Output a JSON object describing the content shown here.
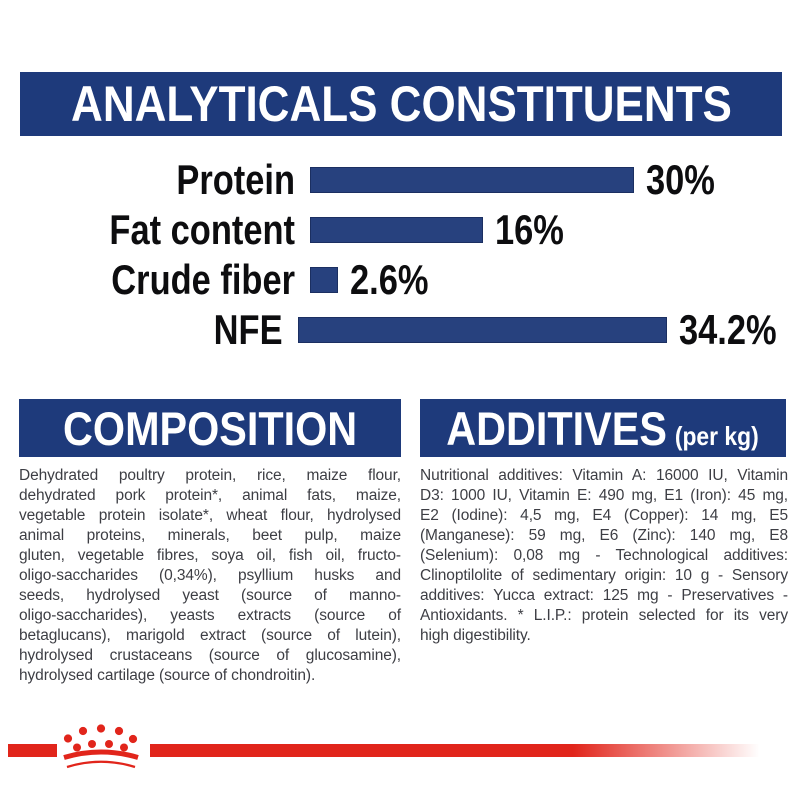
{
  "analyticals": {
    "title": "ANALYTICALS CONSTITUENTS"
  },
  "chart_data": {
    "type": "bar",
    "orientation": "horizontal",
    "categories": [
      "Protein",
      "Fat content",
      "Crude fiber",
      "NFE"
    ],
    "values": [
      30,
      16,
      2.6,
      34.2
    ],
    "value_labels": [
      "30%",
      "16%",
      "2.6%",
      "34.2%"
    ],
    "unit": "%",
    "xlim": [
      0,
      36
    ],
    "grid": false,
    "legend": false,
    "bar_color": "#27417e"
  },
  "composition": {
    "title": "COMPOSITION",
    "lines": [
      "Dehydrated poultry protein, rice, maize flour,",
      "dehydrated pork protein*, animal fats, maize,",
      "vegetable protein isolate*, wheat flour, hydrolysed",
      "animal proteins, minerals, beet pulp, maize",
      "gluten, vegetable fibres, soya oil, fish oil, fructo-",
      "oligo-saccharides (0,34%), psyllium husks and",
      "seeds, hydrolysed yeast (source of manno-",
      "oligo-saccharides), yeasts extracts (source of",
      "betaglucans), marigold extract (source of lutein),",
      "hydrolysed crustaceans (source of glucosamine),",
      "hydrolysed cartilage (source of chondroitin)."
    ]
  },
  "additives": {
    "title": "ADDITIVES",
    "subtitle": "(per kg)",
    "lines": [
      "Nutritional additives: Vitamin A: 16000 IU, Vitamin",
      "D3: 1000 IU, Vitamin E: 490 mg, E1 (Iron): 45 mg,",
      "E2 (Iodine): 4,5 mg, E4 (Copper): 14 mg, E5",
      "(Manganese): 59 mg, E6 (Zinc): 140 mg, E8",
      "(Selenium): 0,08 mg - Technological additives:",
      "Clinoptilolite of sedimentary origin: 10 g - Sensory",
      "additives: Yucca extract: 125 mg - Preservatives -",
      "Antioxidants. * L.I.P.: protein selected for its very",
      "high digestibility."
    ]
  },
  "brand": {
    "logo_icon": "royal-canin-crown-logo",
    "colors": {
      "navy": "#1e3a7b",
      "bar_fill": "#27417e",
      "bar_border": "#1b2f61",
      "red": "#e1251b",
      "body_text": "#3d3e44"
    }
  }
}
